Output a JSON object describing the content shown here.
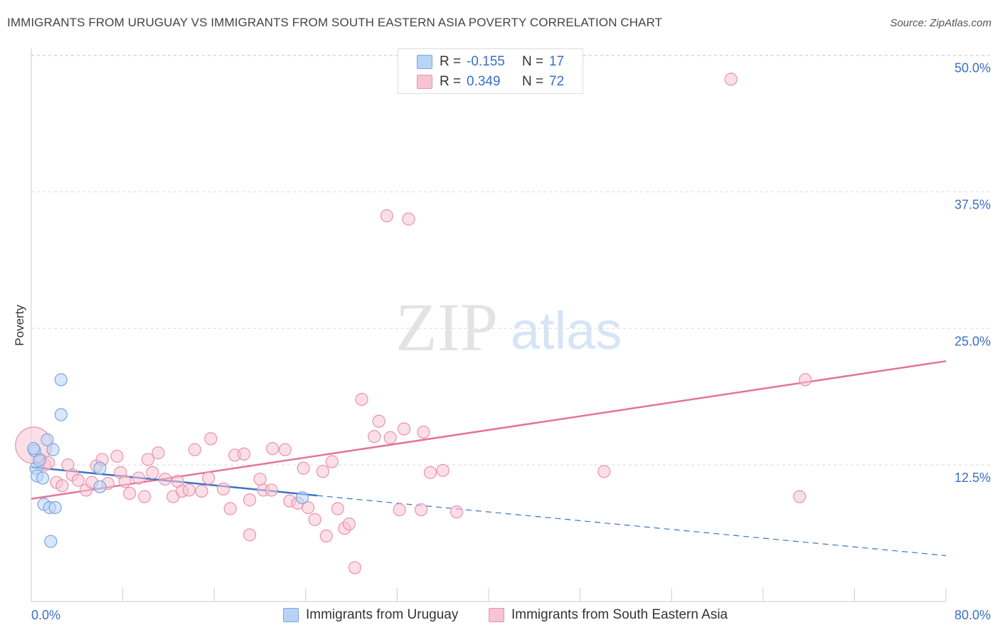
{
  "title": "IMMIGRANTS FROM URUGUAY VS IMMIGRANTS FROM SOUTH EASTERN ASIA POVERTY CORRELATION CHART",
  "source": "Source: ZipAtlas.com",
  "watermark": {
    "zip": "ZIP",
    "atlas": "atlas"
  },
  "colors": {
    "blue_fill": "#b8d3f5",
    "blue_stroke": "#7aa6e0",
    "blue_line": "#3a73c9",
    "pink_fill": "#f7c4d4",
    "pink_stroke": "#eb92ae",
    "pink_line": "#e5739a",
    "accent_text": "#3a6fc4",
    "grid": "#d9d9d9"
  },
  "stats": {
    "uruguay": {
      "r_label": "R =",
      "r_value": "-0.155",
      "n_label": "N =",
      "n_value": "17"
    },
    "sea": {
      "r_label": "R =",
      "r_value": "0.349",
      "n_label": "N =",
      "n_value": "72"
    }
  },
  "legend": {
    "uruguay": "Immigrants from Uruguay",
    "sea": "Immigrants from South Eastern Asia"
  },
  "chart_data": {
    "type": "scatter",
    "title": "IMMIGRANTS FROM URUGUAY VS IMMIGRANTS FROM SOUTH EASTERN ASIA POVERTY CORRELATION CHART",
    "xlabel": "",
    "ylabel": "Poverty",
    "xlim": [
      0,
      80
    ],
    "ylim": [
      0,
      50
    ],
    "x_tick_labels": [
      "0.0%",
      "80.0%"
    ],
    "y_tick_labels": [
      "12.5%",
      "25.0%",
      "37.5%",
      "50.0%"
    ],
    "y_ticks": [
      12.5,
      25,
      37.5,
      50
    ],
    "x_ticks": [
      0,
      8,
      16,
      24,
      32,
      40,
      48,
      56,
      64,
      72,
      80
    ],
    "grid": true,
    "series": [
      {
        "name": "Immigrants from Uruguay",
        "color": "blue",
        "points": [
          [
            0.3,
            13.8,
            1
          ],
          [
            0.4,
            12.2,
            1
          ],
          [
            0.5,
            11.5,
            1
          ],
          [
            0.7,
            12.9,
            1
          ],
          [
            1.0,
            11.3,
            1
          ],
          [
            1.1,
            8.9,
            1
          ],
          [
            1.4,
            14.8,
            1
          ],
          [
            1.6,
            8.6,
            1
          ],
          [
            1.7,
            5.5,
            1
          ],
          [
            1.9,
            13.9,
            1
          ],
          [
            2.1,
            8.6,
            1
          ],
          [
            2.6,
            17.1,
            1
          ],
          [
            2.6,
            20.3,
            1
          ],
          [
            6.0,
            12.2,
            1
          ],
          [
            6.0,
            10.5,
            1
          ],
          [
            23.7,
            9.5,
            1
          ],
          [
            0.2,
            14.0,
            1
          ]
        ],
        "trend": {
          "x0": 0,
          "y0": 12.3,
          "x1": 25,
          "y1": 9.7,
          "dash_x1": 80,
          "dash_y1": 4.2
        }
      },
      {
        "name": "Immigrants from South Eastern Asia",
        "color": "pink",
        "points": [
          [
            0.2,
            14.3,
            3
          ],
          [
            0.8,
            13.0,
            1
          ],
          [
            1.2,
            12.5,
            1
          ],
          [
            1.5,
            12.7,
            1
          ],
          [
            2.2,
            10.9,
            1
          ],
          [
            2.7,
            10.6,
            1
          ],
          [
            3.2,
            12.5,
            1
          ],
          [
            3.6,
            11.6,
            1
          ],
          [
            4.1,
            11.1,
            1
          ],
          [
            4.8,
            10.2,
            1
          ],
          [
            5.3,
            10.9,
            1
          ],
          [
            5.7,
            12.4,
            1
          ],
          [
            6.2,
            13.0,
            1
          ],
          [
            6.7,
            10.8,
            1
          ],
          [
            7.5,
            13.3,
            1
          ],
          [
            7.8,
            11.8,
            1
          ],
          [
            8.2,
            11.0,
            1
          ],
          [
            8.6,
            9.9,
            1
          ],
          [
            9.4,
            11.3,
            1
          ],
          [
            9.9,
            9.6,
            1
          ],
          [
            10.2,
            13.0,
            1
          ],
          [
            10.6,
            11.8,
            1
          ],
          [
            11.1,
            13.6,
            1
          ],
          [
            11.7,
            11.2,
            1
          ],
          [
            12.4,
            9.6,
            1
          ],
          [
            12.8,
            11.0,
            1
          ],
          [
            13.2,
            10.1,
            1
          ],
          [
            13.8,
            10.2,
            1
          ],
          [
            14.3,
            13.9,
            1
          ],
          [
            14.9,
            10.1,
            1
          ],
          [
            15.5,
            11.3,
            1
          ],
          [
            15.7,
            14.9,
            1
          ],
          [
            16.8,
            10.3,
            1
          ],
          [
            17.4,
            8.5,
            1
          ],
          [
            17.8,
            13.4,
            1
          ],
          [
            18.6,
            13.5,
            1
          ],
          [
            19.1,
            9.3,
            1
          ],
          [
            19.1,
            6.1,
            1
          ],
          [
            20.0,
            11.2,
            1
          ],
          [
            20.3,
            10.2,
            1
          ],
          [
            21.0,
            10.2,
            1
          ],
          [
            21.1,
            14.0,
            1
          ],
          [
            22.2,
            13.9,
            1
          ],
          [
            22.6,
            9.2,
            1
          ],
          [
            23.3,
            9.0,
            1
          ],
          [
            23.8,
            12.2,
            1
          ],
          [
            24.2,
            8.6,
            1
          ],
          [
            24.8,
            7.5,
            1
          ],
          [
            25.5,
            11.9,
            1
          ],
          [
            25.8,
            6.0,
            1
          ],
          [
            26.3,
            12.8,
            1
          ],
          [
            26.8,
            8.5,
            1
          ],
          [
            27.4,
            6.7,
            1
          ],
          [
            27.8,
            7.1,
            1
          ],
          [
            28.3,
            3.1,
            1
          ],
          [
            28.9,
            18.5,
            1
          ],
          [
            30.0,
            15.1,
            1
          ],
          [
            30.4,
            16.5,
            1
          ],
          [
            31.1,
            35.3,
            1
          ],
          [
            31.4,
            15.0,
            1
          ],
          [
            32.2,
            8.4,
            1
          ],
          [
            32.6,
            15.8,
            1
          ],
          [
            33.0,
            35.0,
            1
          ],
          [
            34.1,
            8.4,
            1
          ],
          [
            34.3,
            15.5,
            1
          ],
          [
            34.9,
            11.8,
            1
          ],
          [
            37.2,
            8.2,
            1
          ],
          [
            50.1,
            11.9,
            1
          ],
          [
            61.2,
            47.8,
            1
          ],
          [
            67.2,
            9.6,
            1
          ],
          [
            67.7,
            20.3,
            1
          ],
          [
            36.0,
            12.0,
            1
          ]
        ],
        "trend": {
          "x0": 0,
          "y0": 9.4,
          "x1": 80,
          "y1": 22.0
        }
      }
    ]
  }
}
